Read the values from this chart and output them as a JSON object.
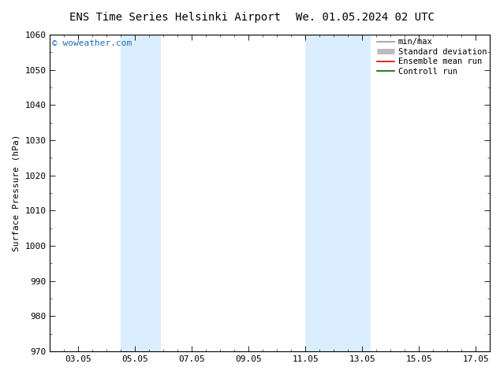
{
  "title_left": "ENS Time Series Helsinki Airport",
  "title_right": "We. 01.05.2024 02 UTC",
  "ylabel": "Surface Pressure (hPa)",
  "ylim": [
    970,
    1060
  ],
  "yticks": [
    970,
    980,
    990,
    1000,
    1010,
    1020,
    1030,
    1040,
    1050,
    1060
  ],
  "xtick_labels": [
    "03.05",
    "05.05",
    "07.05",
    "09.05",
    "11.05",
    "13.05",
    "15.05",
    "17.05"
  ],
  "xtick_positions": [
    3,
    5,
    7,
    9,
    11,
    13,
    15,
    17
  ],
  "xlim": [
    2.0,
    17.5
  ],
  "shaded_bands": [
    {
      "xmin": 4.5,
      "xmax": 5.9
    },
    {
      "xmin": 11.0,
      "xmax": 13.3
    }
  ],
  "shaded_color": "#daeeff",
  "watermark": "© woweather.com",
  "watermark_color": "#1a6aba",
  "legend_entries": [
    {
      "label": "min/max",
      "color": "#999999",
      "lw": 1.2
    },
    {
      "label": "Standard deviation",
      "color": "#bbbbbb",
      "lw": 5
    },
    {
      "label": "Ensemble mean run",
      "color": "#dd0000",
      "lw": 1.2
    },
    {
      "label": "Controll run",
      "color": "#006600",
      "lw": 1.2
    }
  ],
  "bg_color": "#ffffff",
  "title_fontsize": 10,
  "axis_fontsize": 8,
  "tick_fontsize": 8,
  "legend_fontsize": 7.5
}
